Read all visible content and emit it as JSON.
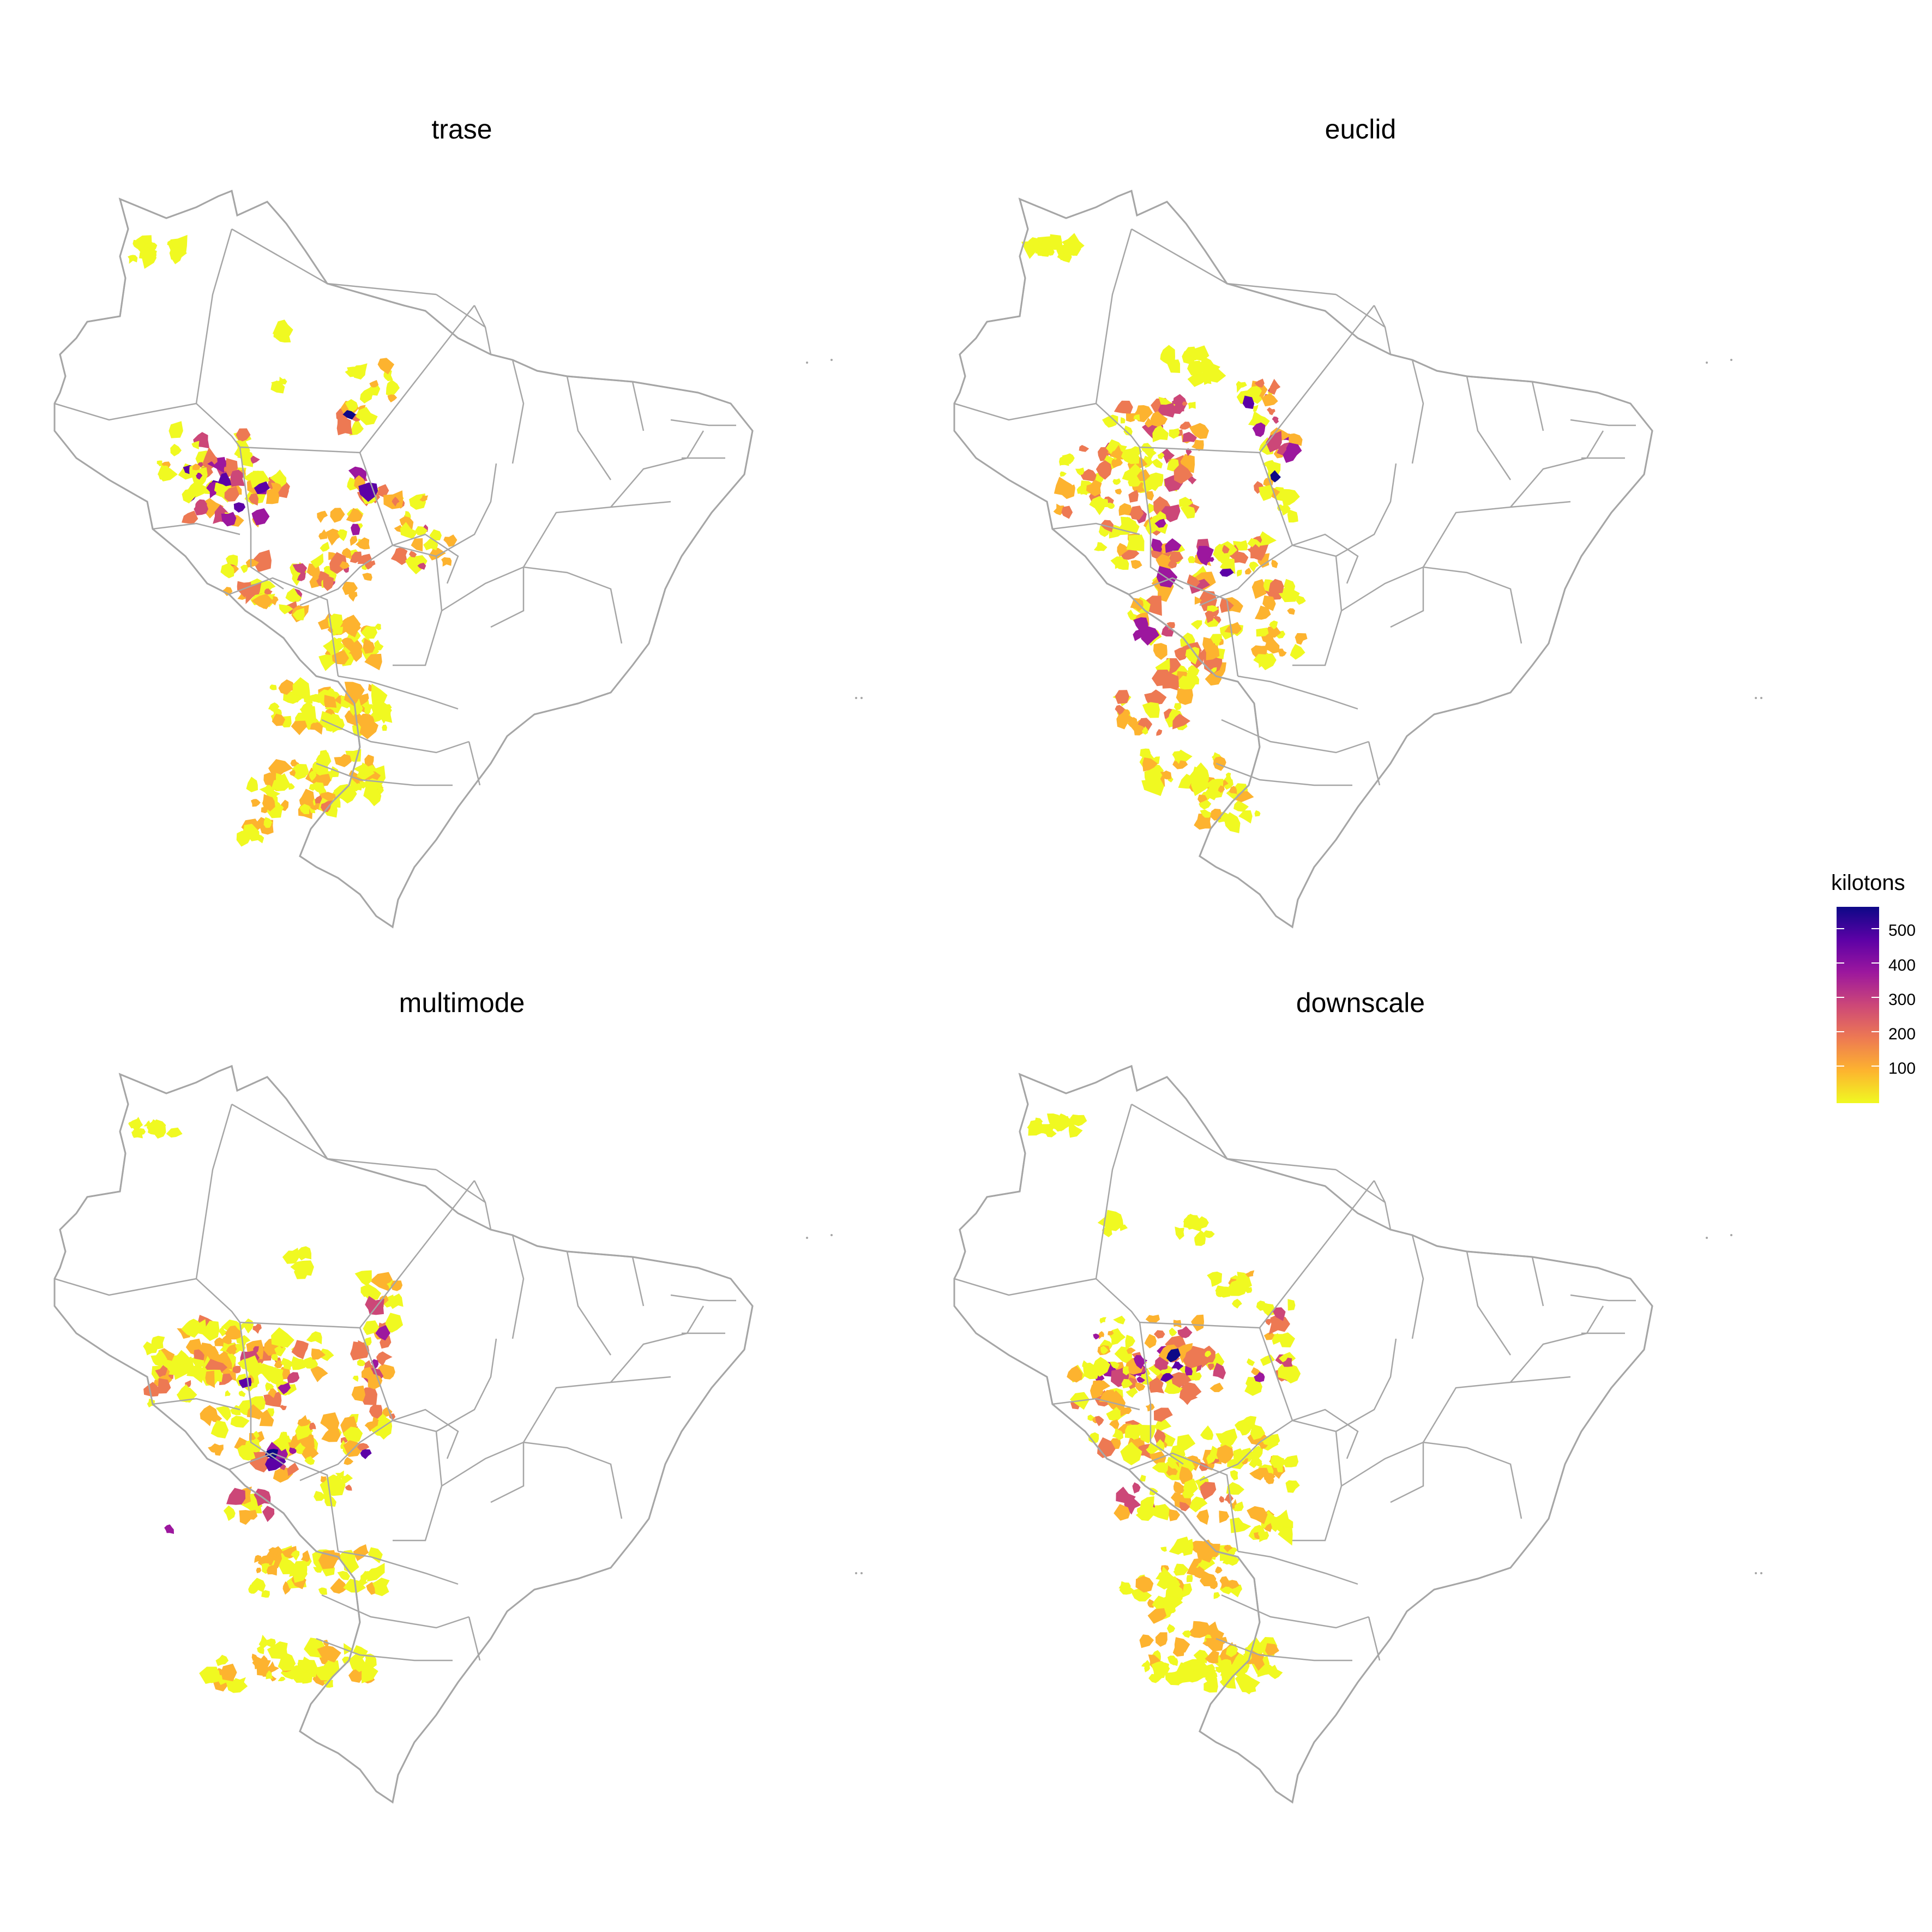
{
  "panels": [
    {
      "title": "trase"
    },
    {
      "title": "euclid"
    },
    {
      "title": "multimode"
    },
    {
      "title": "downscale"
    }
  ],
  "legend": {
    "title": "kilotons",
    "ticks": [
      "500",
      "400",
      "300",
      "200",
      "100"
    ],
    "colors": [
      "#f0f921",
      "#fdb32f",
      "#ed7953",
      "#cc4778",
      "#9c179e",
      "#5c01a6",
      "#0d0887"
    ]
  },
  "colors": {
    "border": "#a6a6a6",
    "background": "#ffffff"
  }
}
